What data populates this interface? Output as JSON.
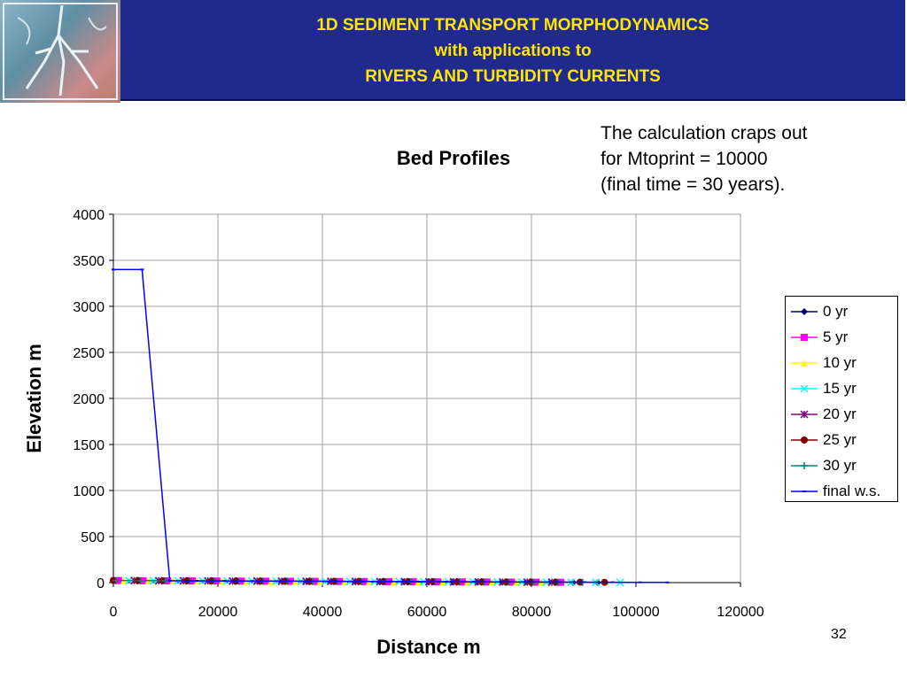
{
  "header": {
    "title_lines": [
      "1D SEDIMENT TRANSPORT MORPHODYNAMICS",
      "with applications to",
      "RIVERS AND TURBIDITY CURRENTS"
    ]
  },
  "note_lines": [
    "The calculation craps out",
    "for Mtoprint = 10000",
    "(final time = 30 years)."
  ],
  "page_number": "32",
  "colors": {
    "banner": "#1f2a8c",
    "banner_text": "#ffe600"
  },
  "chart_data": {
    "type": "scatter",
    "title": "Bed Profiles",
    "xlabel": "Distance m",
    "ylabel": "Elevation m",
    "xlim": [
      0,
      120000
    ],
    "ylim": [
      0,
      4000
    ],
    "x_ticks": [
      0,
      20000,
      40000,
      60000,
      80000,
      100000,
      120000
    ],
    "y_ticks": [
      0,
      500,
      1000,
      1500,
      2000,
      2500,
      3000,
      3500,
      4000
    ],
    "grid": true,
    "legend_position": "right",
    "series": [
      {
        "name": "0 yr",
        "color": "#000080",
        "marker": "diamond",
        "x": [
          0,
          4600,
          9300,
          13900,
          18500,
          23200,
          27800,
          32400,
          37100,
          41700,
          46300,
          51000,
          55600,
          60200,
          64900,
          69500,
          74100,
          78800,
          83400,
          88000,
          92700
        ],
        "y": [
          20,
          19,
          18,
          17,
          16,
          15,
          14,
          13,
          12,
          11,
          10,
          9,
          8,
          7,
          6,
          5,
          4,
          3,
          2,
          1,
          0
        ]
      },
      {
        "name": "5 yr",
        "color": "#ff00ff",
        "marker": "square",
        "x": [
          1000,
          5700,
          10400,
          15100,
          19800,
          24500,
          29200,
          33900,
          38600,
          43300,
          48000,
          52700,
          57400,
          62100,
          66800,
          71500,
          76200,
          80900,
          85600
        ],
        "y": [
          22,
          20,
          19,
          18,
          17,
          16,
          15,
          14,
          13,
          12,
          11,
          10,
          9,
          8,
          7,
          6,
          5,
          4,
          3
        ]
      },
      {
        "name": "10 yr",
        "color": "#ffff00",
        "marker": "triangle",
        "x": [
          2000,
          6700,
          11400,
          16100,
          20800,
          25500,
          30200,
          34900,
          39600,
          44300,
          49000,
          53700,
          58400,
          63100,
          67800,
          72500,
          77200,
          81900
        ],
        "y": [
          22,
          20,
          19,
          18,
          17,
          16,
          15,
          14,
          13,
          12,
          11,
          10,
          9,
          8,
          7,
          6,
          5,
          4
        ]
      },
      {
        "name": "15 yr",
        "color": "#00ffff",
        "marker": "x",
        "x": [
          3000,
          7700,
          12400,
          17100,
          21800,
          26500,
          31200,
          35900,
          40600,
          45300,
          50000,
          54700,
          59400,
          64100,
          68800,
          73500,
          78200,
          82900,
          87600,
          92300,
          97000
        ],
        "y": [
          22,
          20,
          19,
          18,
          17,
          16,
          15,
          14,
          13,
          12,
          11,
          10,
          9,
          8,
          7,
          6,
          5,
          4,
          3,
          2,
          1
        ]
      },
      {
        "name": "20 yr",
        "color": "#800080",
        "marker": "star",
        "x": [
          4000,
          8700,
          13400,
          18100,
          22800,
          27500,
          32200,
          36900,
          41600,
          46300,
          51000,
          55700,
          60400,
          65100,
          69800,
          74500,
          79200,
          83900
        ],
        "y": [
          22,
          20,
          19,
          18,
          17,
          16,
          15,
          14,
          13,
          12,
          11,
          10,
          9,
          8,
          7,
          6,
          5,
          4
        ]
      },
      {
        "name": "25 yr",
        "color": "#800000",
        "marker": "circle",
        "x": [
          0,
          4700,
          9400,
          14100,
          18800,
          23500,
          28200,
          32900,
          37600,
          42300,
          47000,
          51700,
          56400,
          61100,
          65800,
          70500,
          75200,
          79900,
          84600,
          89300,
          94000
        ],
        "y": [
          24,
          22,
          21,
          20,
          19,
          18,
          17,
          16,
          15,
          14,
          13,
          12,
          11,
          10,
          9,
          8,
          7,
          6,
          5,
          4,
          3
        ]
      },
      {
        "name": "30 yr",
        "color": "#008080",
        "marker": "plus",
        "x": [
          500,
          5200,
          9900,
          14600,
          19300,
          24000,
          28700,
          33400,
          38100,
          42800,
          47500,
          52200,
          56900,
          61600,
          66300,
          71000,
          75700,
          80400,
          85100,
          89800
        ],
        "y": [
          22,
          20,
          19,
          18,
          17,
          16,
          15,
          14,
          13,
          12,
          11,
          10,
          9,
          8,
          7,
          6,
          5,
          4,
          3,
          2
        ]
      },
      {
        "name": "final w.s.",
        "color": "#0000ff",
        "marker": "dash",
        "x": [
          0,
          5500,
          10800,
          16000,
          21300,
          26600,
          31900,
          37200,
          42500,
          47800,
          53100,
          58400,
          63700,
          69000,
          74300,
          79600,
          84900,
          90200,
          95500,
          100800,
          106000
        ],
        "y": [
          3400,
          3400,
          20,
          19,
          18,
          17,
          16,
          15,
          14,
          13,
          12,
          11,
          10,
          9,
          8,
          7,
          6,
          5,
          4,
          3,
          2
        ]
      }
    ]
  }
}
